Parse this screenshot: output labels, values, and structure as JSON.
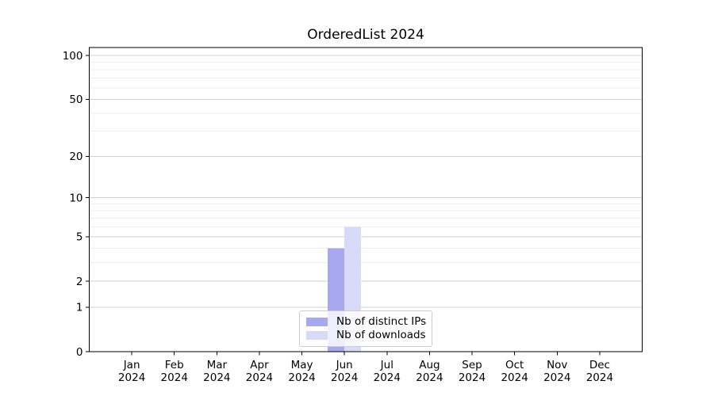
{
  "figure": {
    "background": "#ffffff"
  },
  "chart_data": {
    "type": "bar",
    "title": "OrderedList 2024",
    "categories": [
      "Jan",
      "Feb",
      "Mar",
      "Apr",
      "May",
      "Jun",
      "Jul",
      "Aug",
      "Sep",
      "Oct",
      "Nov",
      "Dec"
    ],
    "year_label": "2024",
    "series": [
      {
        "name": "Nb of distinct IPs",
        "color": "#a8a8f0",
        "values": [
          0,
          0,
          0,
          0,
          0,
          4,
          0,
          0,
          0,
          0,
          0,
          0
        ]
      },
      {
        "name": "Nb of downloads",
        "color": "#d9d9f8",
        "values": [
          0,
          0,
          0,
          0,
          0,
          6,
          0,
          0,
          0,
          0,
          0,
          0
        ]
      }
    ],
    "xlabel": "",
    "ylabel": "",
    "yscale": "log1p",
    "ylim": [
      0,
      113
    ],
    "yticks": [
      0,
      1,
      2,
      5,
      10,
      20,
      50,
      100
    ],
    "minor_yticks": [
      3,
      4,
      6,
      7,
      8,
      9,
      30,
      40,
      60,
      70,
      80,
      90
    ],
    "grid": "both",
    "grid_major_color": "#d2d2d2",
    "grid_minor_color": "#ededed",
    "legend_position": "lower center"
  }
}
